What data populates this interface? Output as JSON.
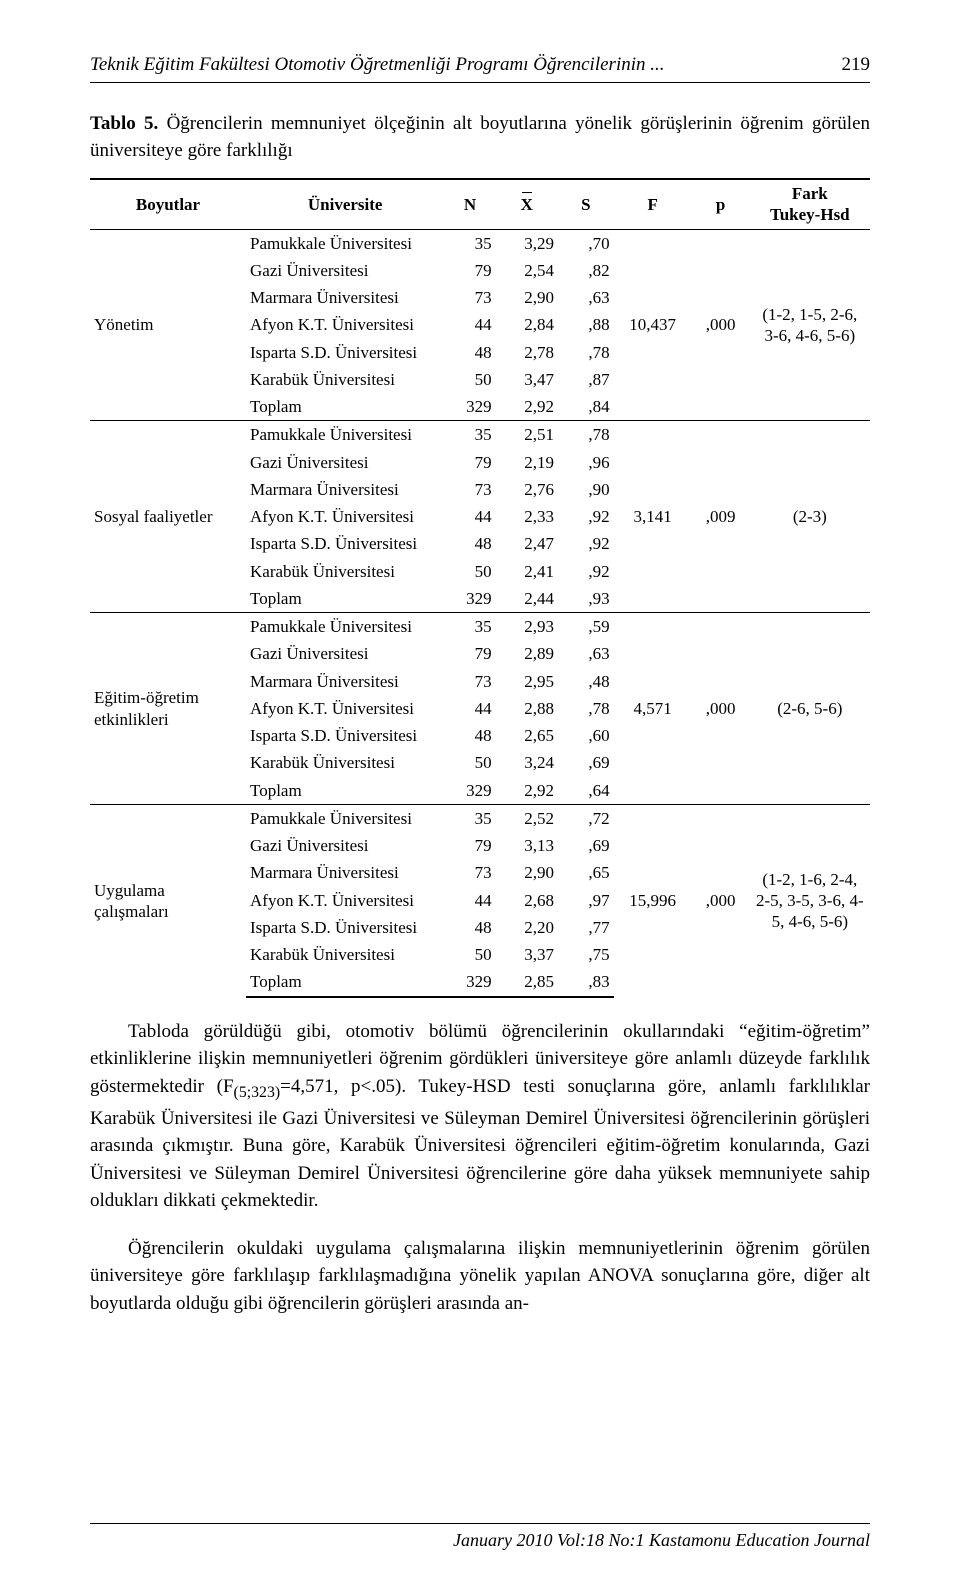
{
  "header": {
    "running_title": "Teknik Eğitim Fakültesi Otomotiv Öğretmenliği Programı Öğrencilerinin ...",
    "page_number": "219"
  },
  "table": {
    "caption_label": "Tablo 5.",
    "caption_text": "Öğrencilerin memnuniyet ölçeğinin alt boyutlarına yönelik görüşlerinin öğrenim görülen üniversiteye göre farklılığı",
    "head": {
      "dim": "Boyutlar",
      "uni": "Üniversite",
      "n": "N",
      "xbar": "X",
      "s": "S",
      "f": "F",
      "p": "p",
      "thsd_a": "Fark",
      "thsd_b": "Tukey-Hsd"
    },
    "groups": [
      {
        "dim": "Yönetim",
        "f": "10,437",
        "p": ",000",
        "thsd": "(1-2, 1-5, 2-6, 3-6, 4-6, 5-6)",
        "rows": [
          {
            "uni": "Pamukkale Üniversitesi",
            "n": "35",
            "x": "3,29",
            "s": ",70"
          },
          {
            "uni": "Gazi Üniversitesi",
            "n": "79",
            "x": "2,54",
            "s": ",82"
          },
          {
            "uni": "Marmara Üniversitesi",
            "n": "73",
            "x": "2,90",
            "s": ",63"
          },
          {
            "uni": "Afyon K.T. Üniversitesi",
            "n": "44",
            "x": "2,84",
            "s": ",88"
          },
          {
            "uni": "Isparta S.D. Üniversitesi",
            "n": "48",
            "x": "2,78",
            "s": ",78"
          },
          {
            "uni": "Karabük Üniversitesi",
            "n": "50",
            "x": "3,47",
            "s": ",87"
          },
          {
            "uni": "Toplam",
            "n": "329",
            "x": "2,92",
            "s": ",84"
          }
        ]
      },
      {
        "dim": "Sosyal faaliyetler",
        "f": "3,141",
        "p": ",009",
        "thsd": "(2-3)",
        "rows": [
          {
            "uni": "Pamukkale Üniversitesi",
            "n": "35",
            "x": "2,51",
            "s": ",78"
          },
          {
            "uni": "Gazi Üniversitesi",
            "n": "79",
            "x": "2,19",
            "s": ",96"
          },
          {
            "uni": "Marmara Üniversitesi",
            "n": "73",
            "x": "2,76",
            "s": ",90"
          },
          {
            "uni": "Afyon K.T. Üniversitesi",
            "n": "44",
            "x": "2,33",
            "s": ",92"
          },
          {
            "uni": "Isparta S.D. Üniversitesi",
            "n": "48",
            "x": "2,47",
            "s": ",92"
          },
          {
            "uni": "Karabük Üniversitesi",
            "n": "50",
            "x": "2,41",
            "s": ",92"
          },
          {
            "uni": "Toplam",
            "n": "329",
            "x": "2,44",
            "s": ",93"
          }
        ]
      },
      {
        "dim": "Eğitim-öğretim etkinlikleri",
        "f": "4,571",
        "p": ",000",
        "thsd": "(2-6, 5-6)",
        "rows": [
          {
            "uni": "Pamukkale Üniversitesi",
            "n": "35",
            "x": "2,93",
            "s": ",59"
          },
          {
            "uni": "Gazi Üniversitesi",
            "n": "79",
            "x": "2,89",
            "s": ",63"
          },
          {
            "uni": "Marmara Üniversitesi",
            "n": "73",
            "x": "2,95",
            "s": ",48"
          },
          {
            "uni": "Afyon K.T. Üniversitesi",
            "n": "44",
            "x": "2,88",
            "s": ",78"
          },
          {
            "uni": "Isparta S.D. Üniversitesi",
            "n": "48",
            "x": "2,65",
            "s": ",60"
          },
          {
            "uni": "Karabük Üniversitesi",
            "n": "50",
            "x": "3,24",
            "s": ",69"
          },
          {
            "uni": "Toplam",
            "n": "329",
            "x": "2,92",
            "s": ",64"
          }
        ]
      },
      {
        "dim": "Uygulama çalışmaları",
        "f": "15,996",
        "p": ",000",
        "thsd": "(1-2, 1-6, 2-4, 2-5, 3-5, 3-6, 4-5, 4-6, 5-6)",
        "rows": [
          {
            "uni": "Pamukkale Üniversitesi",
            "n": "35",
            "x": "2,52",
            "s": ",72"
          },
          {
            "uni": "Gazi Üniversitesi",
            "n": "79",
            "x": "3,13",
            "s": ",69"
          },
          {
            "uni": "Marmara Üniversitesi",
            "n": "73",
            "x": "2,90",
            "s": ",65"
          },
          {
            "uni": "Afyon K.T. Üniversitesi",
            "n": "44",
            "x": "2,68",
            "s": ",97"
          },
          {
            "uni": "Isparta S.D. Üniversitesi",
            "n": "48",
            "x": "2,20",
            "s": ",77"
          },
          {
            "uni": "Karabük Üniversitesi",
            "n": "50",
            "x": "3,37",
            "s": ",75"
          },
          {
            "uni": "Toplam",
            "n": "329",
            "x": "2,85",
            "s": ",83"
          }
        ]
      }
    ]
  },
  "paragraphs": {
    "p1_a": "Tabloda görüldüğü gibi, otomotiv bölümü öğrencilerinin okullarındaki “eğitim-öğretim” etkinliklerine ilişkin memnuniyetleri öğrenim gördükleri üniversiteye göre anlamlı düzeyde farklılık göstermektedir (F",
    "p1_sub": "(5;323)",
    "p1_b": "=4,571, p<.05). Tukey-HSD testi sonuçlarına göre, anlamlı farklılıklar Karabük Üniversitesi ile Gazi Üniversitesi ve Süleyman Demirel Üniversitesi öğrencilerinin görüşleri arasında çıkmıştır. Buna göre, Karabük Üniversitesi öğrencileri eğitim-öğretim konularında, Gazi Üniversitesi ve Süleyman Demirel Üniversitesi öğrencilerine göre daha yüksek memnuniyete sahip oldukları dikkati çekmektedir.",
    "p2": "Öğrencilerin okuldaki uygulama çalışmalarına ilişkin memnuniyetlerinin öğrenim görülen üniversiteye göre farklılaşıp farklılaşmadığına yönelik yapılan ANOVA sonuçlarına göre, diğer alt boyutlarda olduğu gibi öğrencilerin görüşleri arasında an-"
  },
  "footer": "January 2010 Vol:18 No:1 Kastamonu Education Journal"
}
